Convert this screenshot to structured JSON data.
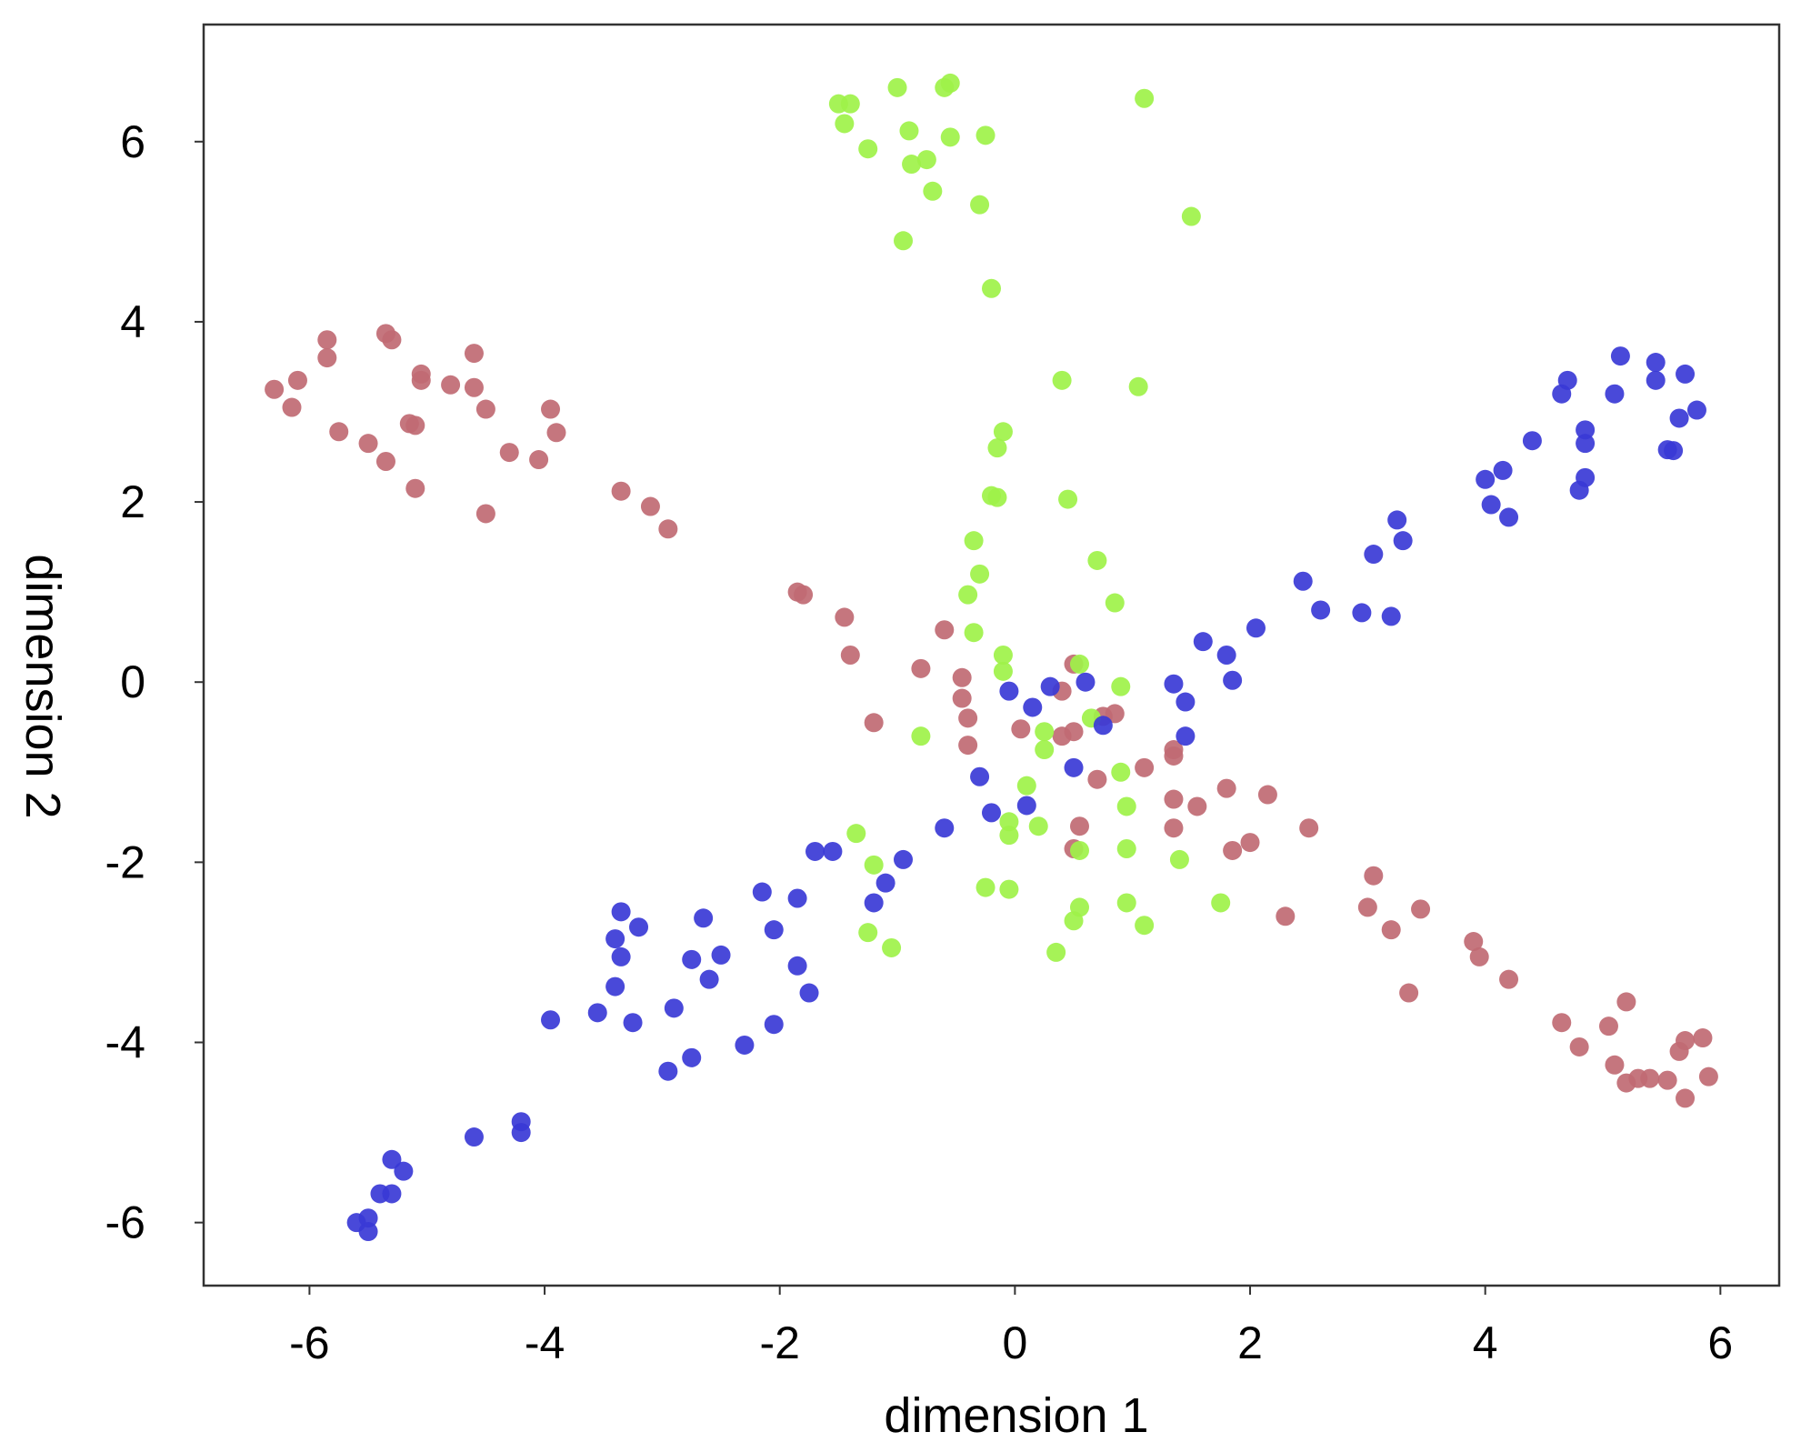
{
  "chart_data": {
    "type": "scatter",
    "title": "",
    "xlabel": "dimension 1",
    "ylabel": "dimension 2",
    "xlim": [
      -6.9,
      6.5
    ],
    "ylim": [
      -6.7,
      7.3
    ],
    "xticks": [
      -6,
      -4,
      -2,
      0,
      2,
      4,
      6
    ],
    "yticks": [
      -6,
      -4,
      -2,
      0,
      2,
      4,
      6
    ],
    "xtick_labels": [
      "-6",
      "-4",
      "-2",
      "0",
      "2",
      "4",
      "6"
    ],
    "ytick_labels": [
      "-6",
      "-4",
      "-2",
      "0",
      "2",
      "4",
      "6"
    ],
    "grid": false,
    "legend": "none",
    "series": [
      {
        "color": "#c06a73",
        "points": [
          [
            -6.3,
            3.25
          ],
          [
            -6.15,
            3.05
          ],
          [
            -6.1,
            3.35
          ],
          [
            -5.85,
            3.6
          ],
          [
            -5.85,
            3.8
          ],
          [
            -5.75,
            2.78
          ],
          [
            -5.5,
            2.65
          ],
          [
            -5.35,
            2.45
          ],
          [
            -5.35,
            3.87
          ],
          [
            -5.3,
            3.8
          ],
          [
            -5.15,
            2.87
          ],
          [
            -5.1,
            2.15
          ],
          [
            -5.1,
            2.85
          ],
          [
            -5.05,
            3.42
          ],
          [
            -5.05,
            3.35
          ],
          [
            -4.8,
            3.3
          ],
          [
            -4.6,
            3.65
          ],
          [
            -4.6,
            3.27
          ],
          [
            -4.5,
            1.87
          ],
          [
            -4.5,
            3.03
          ],
          [
            -4.3,
            2.55
          ],
          [
            -4.05,
            2.47
          ],
          [
            -3.95,
            3.03
          ],
          [
            -3.9,
            2.77
          ],
          [
            -3.35,
            2.12
          ],
          [
            -3.1,
            1.95
          ],
          [
            -2.95,
            1.7
          ],
          [
            -1.85,
            1.0
          ],
          [
            -1.8,
            0.97
          ],
          [
            -1.45,
            0.72
          ],
          [
            -1.4,
            0.3
          ],
          [
            -1.2,
            -0.45
          ],
          [
            -0.8,
            0.15
          ],
          [
            -0.6,
            0.58
          ],
          [
            -0.45,
            0.05
          ],
          [
            -0.45,
            -0.18
          ],
          [
            -0.4,
            -0.4
          ],
          [
            -0.4,
            -0.7
          ],
          [
            0.05,
            -0.52
          ],
          [
            0.4,
            -0.6
          ],
          [
            0.4,
            -0.1
          ],
          [
            0.5,
            -0.55
          ],
          [
            0.55,
            -1.6
          ],
          [
            0.5,
            -1.85
          ],
          [
            0.5,
            0.2
          ],
          [
            0.7,
            -1.08
          ],
          [
            0.75,
            -0.38
          ],
          [
            0.85,
            -0.35
          ],
          [
            1.1,
            -0.95
          ],
          [
            1.35,
            -0.75
          ],
          [
            1.35,
            -0.82
          ],
          [
            1.35,
            -1.3
          ],
          [
            1.35,
            -1.62
          ],
          [
            1.55,
            -1.38
          ],
          [
            1.8,
            -1.18
          ],
          [
            1.85,
            -1.87
          ],
          [
            2.0,
            -1.78
          ],
          [
            2.15,
            -1.25
          ],
          [
            2.3,
            -2.6
          ],
          [
            2.5,
            -1.62
          ],
          [
            3.0,
            -2.5
          ],
          [
            3.05,
            -2.15
          ],
          [
            3.2,
            -2.75
          ],
          [
            3.35,
            -3.45
          ],
          [
            3.45,
            -2.52
          ],
          [
            3.9,
            -2.88
          ],
          [
            3.95,
            -3.05
          ],
          [
            4.2,
            -3.3
          ],
          [
            4.65,
            -3.78
          ],
          [
            4.8,
            -4.05
          ],
          [
            5.05,
            -3.82
          ],
          [
            5.1,
            -4.25
          ],
          [
            5.2,
            -4.45
          ],
          [
            5.2,
            -3.55
          ],
          [
            5.3,
            -4.4
          ],
          [
            5.4,
            -4.4
          ],
          [
            5.55,
            -4.42
          ],
          [
            5.65,
            -4.1
          ],
          [
            5.7,
            -3.98
          ],
          [
            5.7,
            -4.62
          ],
          [
            5.85,
            -3.95
          ],
          [
            5.9,
            -4.38
          ]
        ]
      },
      {
        "color": "#9ef249",
        "points": [
          [
            -1.5,
            6.42
          ],
          [
            -1.45,
            6.2
          ],
          [
            -1.4,
            6.42
          ],
          [
            -1.25,
            5.92
          ],
          [
            -1.0,
            6.6
          ],
          [
            -0.95,
            4.9
          ],
          [
            -0.9,
            6.12
          ],
          [
            -0.88,
            5.75
          ],
          [
            -0.75,
            5.8
          ],
          [
            -0.7,
            5.45
          ],
          [
            -0.6,
            6.6
          ],
          [
            -0.55,
            6.65
          ],
          [
            -0.55,
            6.05
          ],
          [
            -0.3,
            5.3
          ],
          [
            -0.25,
            6.07
          ],
          [
            -0.2,
            4.37
          ],
          [
            1.1,
            6.48
          ],
          [
            1.5,
            5.17
          ],
          [
            0.4,
            3.35
          ],
          [
            1.05,
            3.28
          ],
          [
            -0.1,
            2.78
          ],
          [
            -0.15,
            2.6
          ],
          [
            -0.2,
            2.07
          ],
          [
            -0.15,
            2.05
          ],
          [
            0.45,
            2.03
          ],
          [
            -0.35,
            1.57
          ],
          [
            -0.3,
            1.2
          ],
          [
            0.7,
            1.35
          ],
          [
            -0.4,
            0.97
          ],
          [
            0.85,
            0.88
          ],
          [
            -0.35,
            0.55
          ],
          [
            -0.1,
            0.3
          ],
          [
            -0.1,
            0.12
          ],
          [
            0.55,
            0.2
          ],
          [
            0.9,
            -0.05
          ],
          [
            0.65,
            -0.4
          ],
          [
            0.25,
            -0.55
          ],
          [
            -0.8,
            -0.6
          ],
          [
            0.25,
            -0.75
          ],
          [
            0.9,
            -1.0
          ],
          [
            0.1,
            -1.15
          ],
          [
            0.95,
            -1.38
          ],
          [
            -0.05,
            -1.55
          ],
          [
            -0.05,
            -1.7
          ],
          [
            0.2,
            -1.6
          ],
          [
            0.55,
            -1.87
          ],
          [
            0.95,
            -1.85
          ],
          [
            1.4,
            -1.97
          ],
          [
            -1.35,
            -1.68
          ],
          [
            -1.2,
            -2.03
          ],
          [
            -0.25,
            -2.28
          ],
          [
            -0.05,
            -2.3
          ],
          [
            0.95,
            -2.45
          ],
          [
            0.55,
            -2.5
          ],
          [
            0.5,
            -2.65
          ],
          [
            1.1,
            -2.7
          ],
          [
            1.75,
            -2.45
          ],
          [
            -1.25,
            -2.78
          ],
          [
            -1.05,
            -2.95
          ],
          [
            0.35,
            -3.0
          ]
        ]
      },
      {
        "color": "#3a3ad6",
        "points": [
          [
            -5.6,
            -6.0
          ],
          [
            -5.5,
            -5.95
          ],
          [
            -5.5,
            -6.1
          ],
          [
            -5.4,
            -5.68
          ],
          [
            -5.3,
            -5.68
          ],
          [
            -5.3,
            -5.3
          ],
          [
            -5.2,
            -5.43
          ],
          [
            -4.6,
            -5.05
          ],
          [
            -4.2,
            -4.88
          ],
          [
            -4.2,
            -5.0
          ],
          [
            -3.95,
            -3.75
          ],
          [
            -3.55,
            -3.67
          ],
          [
            -3.4,
            -3.38
          ],
          [
            -3.4,
            -2.85
          ],
          [
            -3.35,
            -3.05
          ],
          [
            -3.35,
            -2.55
          ],
          [
            -3.25,
            -3.78
          ],
          [
            -3.2,
            -2.72
          ],
          [
            -2.95,
            -4.32
          ],
          [
            -2.9,
            -3.62
          ],
          [
            -2.75,
            -3.08
          ],
          [
            -2.75,
            -4.17
          ],
          [
            -2.65,
            -2.62
          ],
          [
            -2.6,
            -3.3
          ],
          [
            -2.5,
            -3.03
          ],
          [
            -2.3,
            -4.03
          ],
          [
            -2.15,
            -2.33
          ],
          [
            -2.05,
            -2.75
          ],
          [
            -2.05,
            -3.8
          ],
          [
            -1.85,
            -3.15
          ],
          [
            -1.85,
            -2.4
          ],
          [
            -1.75,
            -3.45
          ],
          [
            -1.7,
            -1.88
          ],
          [
            -1.55,
            -1.88
          ],
          [
            -1.2,
            -2.45
          ],
          [
            -1.1,
            -2.23
          ],
          [
            -0.95,
            -1.97
          ],
          [
            -0.6,
            -1.62
          ],
          [
            -0.3,
            -1.05
          ],
          [
            -0.2,
            -1.45
          ],
          [
            -0.05,
            -0.1
          ],
          [
            0.1,
            -1.37
          ],
          [
            0.15,
            -0.28
          ],
          [
            0.3,
            -0.05
          ],
          [
            0.5,
            -0.95
          ],
          [
            0.6,
            0.0
          ],
          [
            0.75,
            -0.48
          ],
          [
            1.35,
            -0.02
          ],
          [
            1.45,
            -0.22
          ],
          [
            1.45,
            -0.6
          ],
          [
            1.6,
            0.45
          ],
          [
            1.8,
            0.3
          ],
          [
            1.85,
            0.02
          ],
          [
            2.05,
            0.6
          ],
          [
            2.45,
            1.12
          ],
          [
            2.6,
            0.8
          ],
          [
            2.95,
            0.77
          ],
          [
            3.05,
            1.42
          ],
          [
            3.2,
            0.73
          ],
          [
            3.25,
            1.8
          ],
          [
            3.3,
            1.57
          ],
          [
            4.0,
            2.25
          ],
          [
            4.05,
            1.97
          ],
          [
            4.15,
            2.35
          ],
          [
            4.2,
            1.83
          ],
          [
            4.4,
            2.68
          ],
          [
            4.65,
            3.2
          ],
          [
            4.7,
            3.35
          ],
          [
            4.8,
            2.13
          ],
          [
            4.85,
            2.27
          ],
          [
            4.85,
            2.65
          ],
          [
            4.85,
            2.8
          ],
          [
            5.1,
            3.2
          ],
          [
            5.15,
            3.62
          ],
          [
            5.45,
            3.35
          ],
          [
            5.45,
            3.55
          ],
          [
            5.55,
            2.58
          ],
          [
            5.6,
            2.57
          ],
          [
            5.65,
            2.93
          ],
          [
            5.7,
            3.42
          ],
          [
            5.8,
            3.02
          ]
        ]
      }
    ]
  }
}
